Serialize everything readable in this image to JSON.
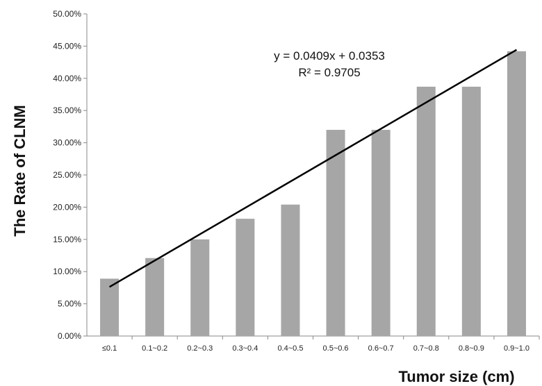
{
  "chart_data": {
    "type": "bar",
    "title": "",
    "xlabel": "Tumor size (cm)",
    "ylabel": "The Rate of CLNM",
    "ylim": [
      0,
      0.5
    ],
    "yticks": [
      "0.00%",
      "5.00%",
      "10.00%",
      "15.00%",
      "20.00%",
      "25.00%",
      "30.00%",
      "35.00%",
      "40.00%",
      "45.00%",
      "50.00%"
    ],
    "categories": [
      "≤0.1",
      "0.1~0.2",
      "0.2~0.3",
      "0.3~0.4",
      "0.4~0.5",
      "0.5~0.6",
      "0.6~0.7",
      "0.7~0.8",
      "0.8~0.9",
      "0.9~1.0"
    ],
    "values": [
      0.089,
      0.121,
      0.15,
      0.182,
      0.204,
      0.32,
      0.32,
      0.387,
      0.387,
      0.442
    ],
    "bar_color": "#a6a6a6",
    "grid": false,
    "trendline": {
      "type": "linear",
      "slope": 0.0409,
      "intercept": 0.0353,
      "equation": "y = 0.0409x + 0.0353",
      "r_squared": "R² = 0.9705",
      "color": "#000000"
    }
  }
}
